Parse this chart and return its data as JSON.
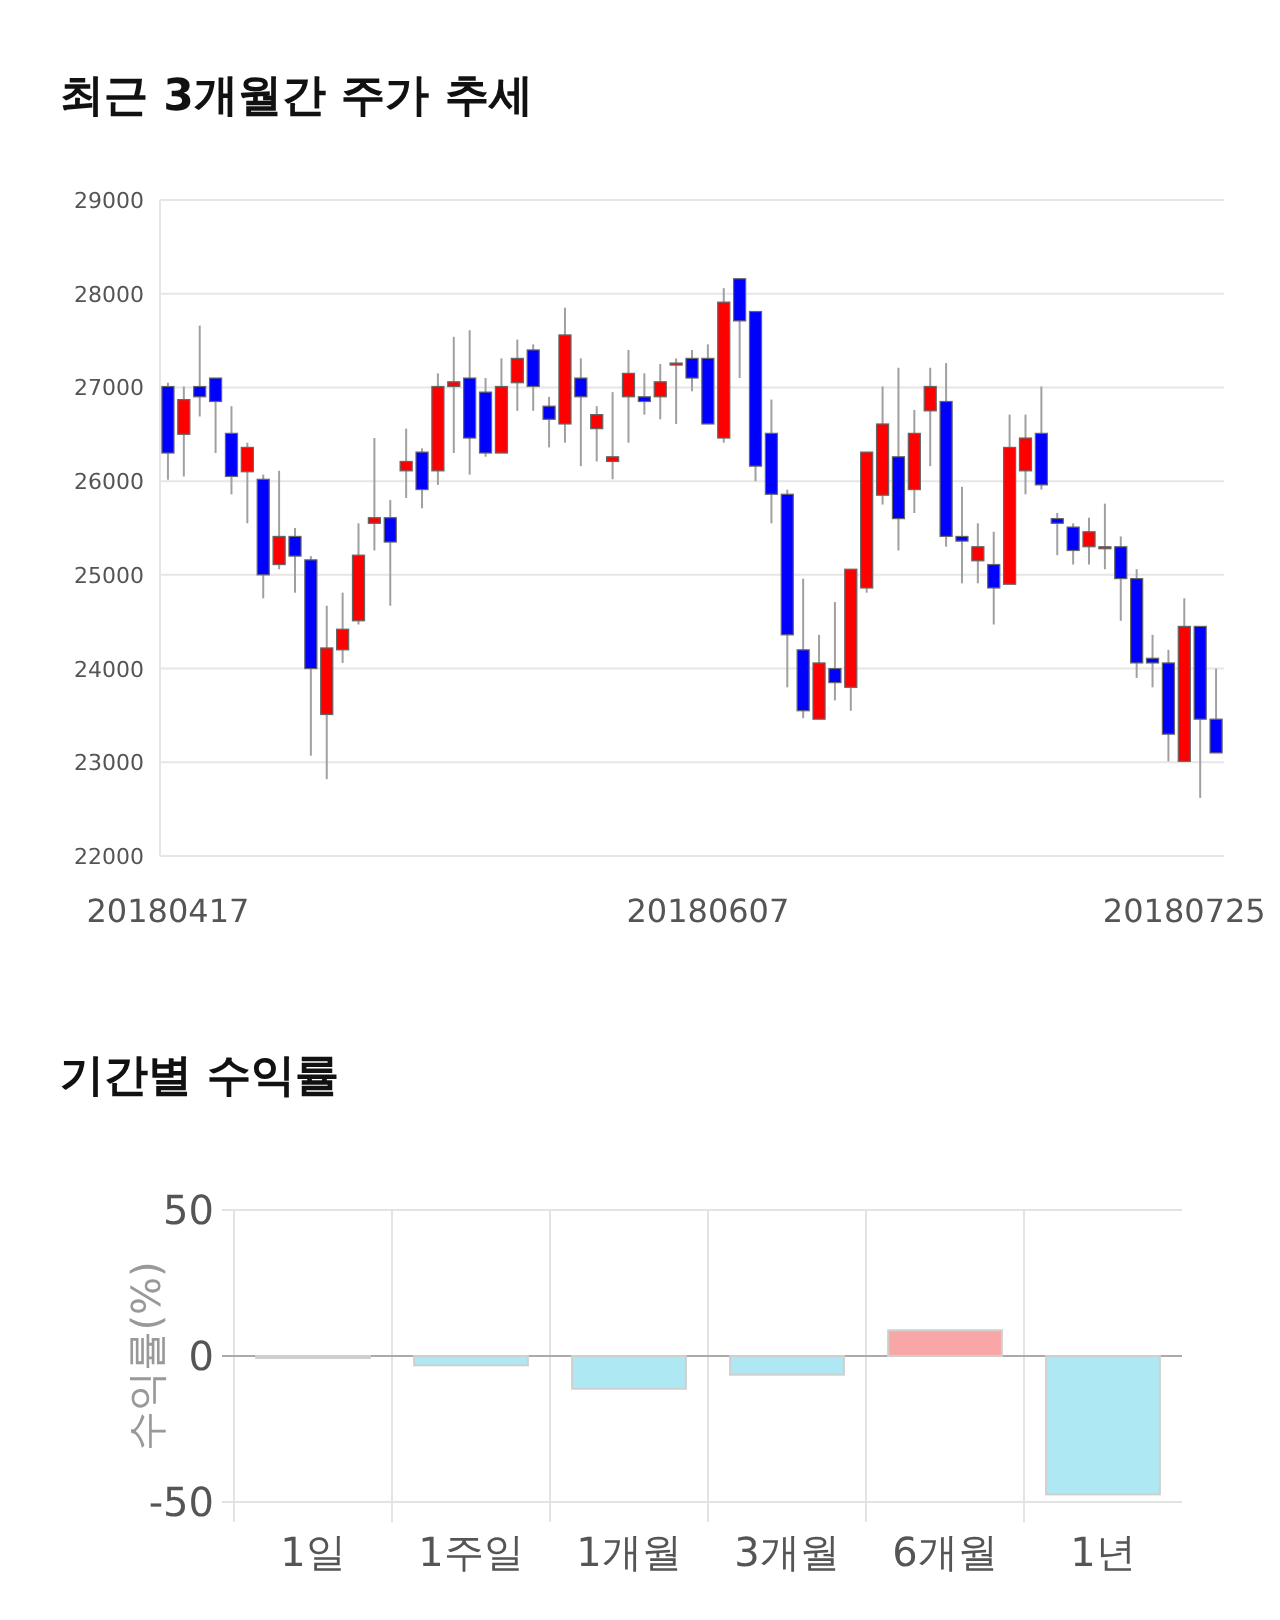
{
  "chart_data": [
    {
      "type": "candlestick",
      "title": "최근 3개월간 주가 추세",
      "categories": [
        "20180417",
        null,
        null,
        null,
        null,
        null,
        null,
        null,
        null,
        null,
        null,
        null,
        null,
        null,
        null,
        null,
        null,
        null,
        null,
        null,
        null,
        null,
        null,
        null,
        null,
        null,
        null,
        null,
        null,
        null,
        null,
        null,
        null,
        null,
        "20180607",
        null,
        null,
        null,
        null,
        null,
        null,
        null,
        null,
        null,
        null,
        null,
        null,
        null,
        null,
        null,
        null,
        null,
        null,
        null,
        null,
        null,
        null,
        null,
        null,
        null,
        null,
        null,
        null,
        null,
        "20180725",
        null,
        null
      ],
      "ohlc": [
        [
          27010,
          27050,
          26015,
          26300
        ],
        [
          26500,
          27010,
          26050,
          26870
        ],
        [
          27010,
          27660,
          26690,
          26900
        ],
        [
          27100,
          27100,
          26300,
          26850
        ],
        [
          26510,
          26800,
          25860,
          26050
        ],
        [
          26100,
          26410,
          25550,
          26360
        ],
        [
          26020,
          26070,
          24750,
          25000
        ],
        [
          25110,
          26110,
          25060,
          25410
        ],
        [
          25410,
          25500,
          24810,
          25200
        ],
        [
          25160,
          25200,
          23070,
          24000
        ],
        [
          23510,
          24670,
          22820,
          24220
        ],
        [
          24200,
          24810,
          24060,
          24420
        ],
        [
          24510,
          25550,
          24470,
          25210
        ],
        [
          25550,
          26460,
          25260,
          25610
        ],
        [
          25610,
          25800,
          24670,
          25350
        ],
        [
          26110,
          26560,
          25820,
          26210
        ],
        [
          26310,
          26350,
          25710,
          25910
        ],
        [
          26110,
          27150,
          25960,
          27010
        ],
        [
          27010,
          27540,
          26300,
          27060
        ],
        [
          27100,
          27610,
          26070,
          26460
        ],
        [
          26950,
          27100,
          26260,
          26300
        ],
        [
          26300,
          27310,
          26300,
          27010
        ],
        [
          27050,
          27510,
          26750,
          27310
        ],
        [
          27400,
          27460,
          26750,
          27010
        ],
        [
          26800,
          26900,
          26360,
          26660
        ],
        [
          26610,
          27850,
          26410,
          27560
        ],
        [
          27100,
          27310,
          26160,
          26900
        ],
        [
          26560,
          26800,
          26210,
          26710
        ],
        [
          26210,
          26950,
          26020,
          26260
        ],
        [
          26900,
          27400,
          26410,
          27150
        ],
        [
          26900,
          27150,
          26710,
          26850
        ],
        [
          26900,
          27250,
          26660,
          27060
        ],
        [
          27260,
          27310,
          26610,
          27260
        ],
        [
          27310,
          27400,
          26960,
          27100
        ],
        [
          27310,
          27460,
          26610,
          26610
        ],
        [
          26460,
          28060,
          26410,
          27910
        ],
        [
          28160,
          28160,
          27100,
          27710
        ],
        [
          27810,
          27810,
          26000,
          26160
        ],
        [
          26510,
          26870,
          25550,
          25860
        ],
        [
          25860,
          25910,
          23800,
          24360
        ],
        [
          24200,
          24960,
          23470,
          23550
        ],
        [
          23460,
          24360,
          23460,
          24060
        ],
        [
          24000,
          24710,
          23660,
          23850
        ],
        [
          23800,
          25060,
          23550,
          25060
        ],
        [
          24860,
          26310,
          24810,
          26310
        ],
        [
          25850,
          27010,
          25750,
          26610
        ],
        [
          26260,
          27210,
          25260,
          25600
        ],
        [
          25910,
          26760,
          25660,
          26510
        ],
        [
          26750,
          27210,
          26160,
          27010
        ],
        [
          26850,
          27260,
          25300,
          25410
        ],
        [
          25410,
          25940,
          24910,
          25360
        ],
        [
          25150,
          25550,
          24910,
          25300
        ],
        [
          25110,
          25460,
          24470,
          24860
        ],
        [
          24900,
          26710,
          24900,
          26360
        ],
        [
          26110,
          26710,
          25860,
          26460
        ],
        [
          26510,
          27010,
          25910,
          25960
        ],
        [
          25600,
          25660,
          25210,
          25550
        ],
        [
          25510,
          25550,
          25110,
          25260
        ],
        [
          25300,
          25610,
          25110,
          25460
        ],
        [
          25300,
          25760,
          25060,
          25300
        ],
        [
          25300,
          25410,
          24510,
          24960
        ],
        [
          24960,
          25060,
          23900,
          24060
        ],
        [
          24110,
          24360,
          23800,
          24060
        ],
        [
          24060,
          24200,
          23010,
          23300
        ],
        [
          23010,
          24750,
          23010,
          24450
        ],
        [
          24450,
          24450,
          22620,
          23460
        ],
        [
          23460,
          24000,
          23100,
          23100
        ]
      ],
      "ylim": [
        22000,
        29000
      ],
      "yticks": [
        22000,
        23000,
        24000,
        25000,
        26000,
        27000,
        28000,
        29000
      ],
      "grid": "y"
    },
    {
      "type": "bar",
      "title": "기간별 수익률",
      "ylabel": "수익률(%)",
      "categories": [
        "1일",
        "1주일",
        "1개월",
        "3개월",
        "6개월",
        "1년"
      ],
      "values": [
        -0.7,
        -3.2,
        -11.2,
        -6.4,
        8.8,
        -47.4
      ],
      "colors": [
        "#aee9f3",
        "#aee9f3",
        "#aee9f3",
        "#aee9f3",
        "#f9a6a6",
        "#aee9f3"
      ],
      "ylim": [
        -50,
        50
      ],
      "yticks": [
        -50,
        0,
        50
      ],
      "grid": true
    }
  ]
}
